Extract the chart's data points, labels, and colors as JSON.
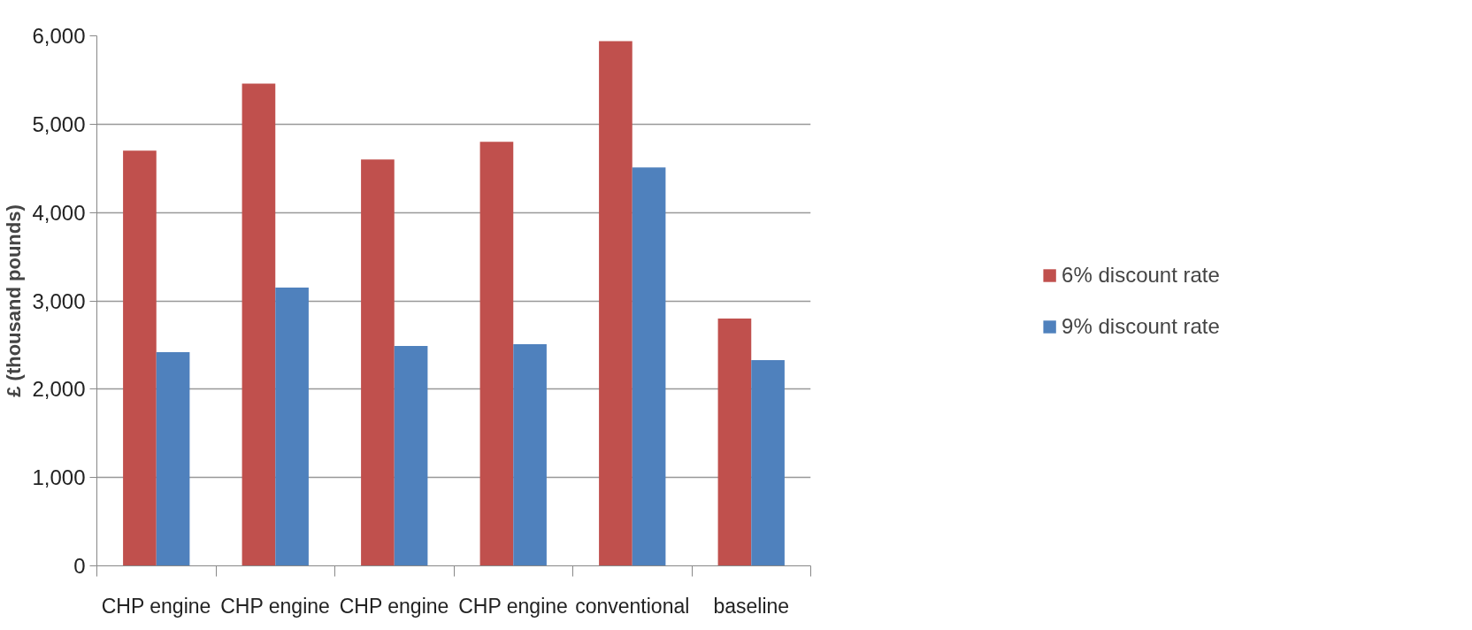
{
  "chart_data": {
    "type": "bar",
    "ylabel": "£ (thousand pounds)",
    "categories": [
      "CHP engine",
      "CHP engine",
      "CHP engine",
      "CHP engine",
      "conventional",
      "baseline"
    ],
    "series": [
      {
        "name": "6% discount rate",
        "color": "#c0504d",
        "values": [
          4700,
          5460,
          4600,
          4800,
          5940,
          2800
        ]
      },
      {
        "name": "9% discount rate",
        "color": "#4f81bd",
        "values": [
          2420,
          3150,
          2490,
          2510,
          4510,
          2330
        ]
      }
    ],
    "ylim": [
      0,
      6000
    ],
    "yticks": [
      0,
      {
        "value": 1000,
        "label": "1,000"
      },
      {
        "value": 2000,
        "label": "2,000"
      },
      {
        "value": 3000,
        "label": "3,000"
      },
      {
        "value": 4000,
        "label": "4,000"
      },
      {
        "value": 5000,
        "label": "5,000"
      },
      {
        "value": 6000,
        "label": "6,000"
      }
    ],
    "grid": "y",
    "legend": "right"
  }
}
